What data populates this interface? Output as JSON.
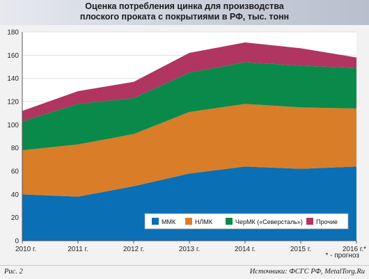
{
  "title_line1": "Оценка потребления цинка для производства",
  "title_line2": "плоского проката с покрытиями в РФ, тыс. тонн",
  "note": "* - прогноз",
  "footer": {
    "figure_label": "Рис. 2",
    "source": "Источники: ФСГС РФ, MetalTorg.Ru"
  },
  "chart_data": {
    "type": "area",
    "stacked": true,
    "title": "Оценка потребления цинка для производства плоского проката с покрытиями в РФ, тыс. тонн",
    "categories": [
      "2010 г.",
      "2011 г.",
      "2012 г.",
      "2013 г.",
      "2014 г.",
      "2015 г.",
      "2016 г.*"
    ],
    "ylim": [
      0,
      180
    ],
    "yticks": [
      0,
      20,
      40,
      60,
      80,
      100,
      120,
      140,
      160,
      180
    ],
    "grid": true,
    "legend_position": "bottom-right",
    "series": [
      {
        "name": "ММК",
        "color": "#0a6fb5",
        "values": [
          40,
          38,
          47,
          58,
          64,
          62,
          64
        ]
      },
      {
        "name": "НЛМК",
        "color": "#d97d28",
        "values": [
          38,
          45,
          45,
          53,
          54,
          53,
          50
        ]
      },
      {
        "name": "ЧерМК («Северсталь»)",
        "color": "#0a8a4a",
        "values": [
          25,
          35,
          31,
          34,
          36,
          36,
          35
        ]
      },
      {
        "name": "Прочие",
        "color": "#b03560",
        "values": [
          9,
          11,
          14,
          17,
          17,
          15,
          9
        ]
      }
    ]
  }
}
